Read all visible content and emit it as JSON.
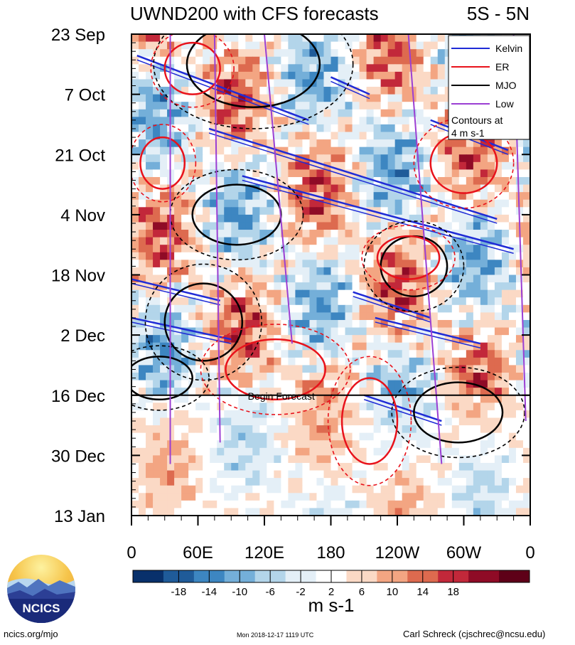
{
  "chart_data": {
    "type": "heatmap",
    "title": "UWND200 with CFS forecasts",
    "region_label": "5S - 5N",
    "variable": "UWND200",
    "units_label": "m s-1",
    "y_ticks": [
      "23 Sep",
      "7 Oct",
      "21 Oct",
      "4 Nov",
      "18 Nov",
      "2 Dec",
      "16 Dec",
      "30 Dec",
      "13 Jan"
    ],
    "x_ticks": [
      "0",
      "60E",
      "120E",
      "180",
      "120W",
      "60W",
      "0"
    ],
    "x_range_degrees_east": [
      0,
      360
    ],
    "time_range_days": [
      0,
      112
    ],
    "forecast_start_day": 84,
    "forecast_label": "Begin Forecast",
    "colorbar": {
      "levels": [
        "-18",
        "-14",
        "-10",
        "-6",
        "-2",
        "2",
        "6",
        "10",
        "14",
        "18"
      ],
      "colors": [
        "#08306b",
        "#1f5b99",
        "#3d86c1",
        "#74afd9",
        "#b3d5ea",
        "#e4eff7",
        "#ffffff",
        "#fbd9c5",
        "#f3a582",
        "#dd6a4f",
        "#c2283a",
        "#8f0b26",
        "#5e0018"
      ]
    },
    "legend": {
      "entries": [
        {
          "name": "Kelvin",
          "color": "#1f2bd6"
        },
        {
          "name": "ER",
          "color": "#e8121b"
        },
        {
          "name": "MJO",
          "color": "#000000"
        },
        {
          "name": "Low",
          "color": "#9b3fd3"
        }
      ],
      "note_line1": "Contours at",
      "note_line2": "4 m s-1",
      "placement": "top-right"
    },
    "features": [
      {
        "wave": "Kelvin",
        "from": [
          5,
          5
        ],
        "to": [
          160,
          20
        ]
      },
      {
        "wave": "Kelvin",
        "from": [
          70,
          22
        ],
        "to": [
          330,
          43
        ]
      },
      {
        "wave": "Kelvin",
        "from": [
          100,
          33
        ],
        "to": [
          345,
          50
        ]
      },
      {
        "wave": "Kelvin",
        "from": [
          180,
          10
        ],
        "to": [
          215,
          14
        ]
      },
      {
        "wave": "Kelvin",
        "from": [
          0,
          57
        ],
        "to": [
          80,
          62
        ]
      },
      {
        "wave": "Kelvin",
        "from": [
          0,
          66
        ],
        "to": [
          90,
          71
        ]
      },
      {
        "wave": "Kelvin",
        "from": [
          200,
          60
        ],
        "to": [
          270,
          66
        ]
      },
      {
        "wave": "Kelvin",
        "from": [
          220,
          66
        ],
        "to": [
          315,
          72
        ]
      },
      {
        "wave": "Kelvin",
        "from": [
          210,
          84
        ],
        "to": [
          280,
          90
        ]
      },
      {
        "wave": "Kelvin",
        "from": [
          270,
          20
        ],
        "to": [
          340,
          27
        ]
      },
      {
        "wave": "MJO",
        "cx": 110,
        "cy": 7,
        "rx": 60,
        "ry": 10
      },
      {
        "wave": "MJO",
        "cx": 95,
        "cy": 42,
        "rx": 40,
        "ry": 7
      },
      {
        "wave": "MJO",
        "cx": 65,
        "cy": 67,
        "rx": 35,
        "ry": 9
      },
      {
        "wave": "MJO",
        "cx": 255,
        "cy": 54,
        "rx": 30,
        "ry": 7
      },
      {
        "wave": "MJO",
        "cx": 295,
        "cy": 88,
        "rx": 40,
        "ry": 7
      },
      {
        "wave": "MJO",
        "cx": 25,
        "cy": 80,
        "rx": 30,
        "ry": 5
      },
      {
        "wave": "ER",
        "cx": 130,
        "cy": 78,
        "rx": 45,
        "ry": 7
      },
      {
        "wave": "ER",
        "cx": 55,
        "cy": 8,
        "rx": 25,
        "ry": 6
      },
      {
        "wave": "ER",
        "cx": 28,
        "cy": 30,
        "rx": 20,
        "ry": 6
      },
      {
        "wave": "ER",
        "cx": 215,
        "cy": 90,
        "rx": 25,
        "ry": 10
      },
      {
        "wave": "ER",
        "cx": 300,
        "cy": 30,
        "rx": 30,
        "ry": 7
      },
      {
        "wave": "ER",
        "cx": 250,
        "cy": 52,
        "rx": 28,
        "ry": 5
      },
      {
        "wave": "Low",
        "from": [
          35,
          0
        ],
        "to": [
          35,
          100
        ]
      },
      {
        "wave": "Low",
        "from": [
          75,
          0
        ],
        "to": [
          80,
          95
        ]
      },
      {
        "wave": "Low",
        "from": [
          120,
          0
        ],
        "to": [
          145,
          72
        ]
      },
      {
        "wave": "Low",
        "from": [
          250,
          0
        ],
        "to": [
          280,
          100
        ]
      },
      {
        "wave": "Low",
        "from": [
          345,
          0
        ],
        "to": [
          356,
          90
        ]
      }
    ]
  },
  "logo": {
    "text": "NCICS"
  },
  "footer": {
    "left": "ncics.org/mjo",
    "center": "Mon 2018-12-17 1119 UTC",
    "right": "Carl Schreck (cjschrec@ncsu.edu)"
  }
}
